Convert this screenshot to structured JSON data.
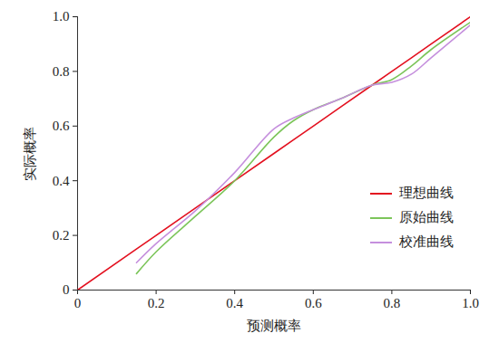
{
  "chart_data": {
    "type": "line",
    "x_label": "预测概率",
    "y_label": "实际概率",
    "x": [
      0,
      0.15,
      0.2,
      0.3,
      0.4,
      0.5,
      0.55,
      0.6,
      0.67,
      0.75,
      0.8,
      0.85,
      0.9,
      1.0
    ],
    "series": [
      {
        "name": "理想曲线",
        "color": "#e3101f",
        "values": [
          0,
          0.15,
          0.2,
          0.3,
          0.4,
          0.5,
          0.55,
          0.6,
          0.67,
          0.75,
          0.8,
          0.85,
          0.9,
          1.0
        ]
      },
      {
        "name": "原始曲线",
        "color": "#7cc55a",
        "values": [
          null,
          0.06,
          0.14,
          0.27,
          0.4,
          0.56,
          0.62,
          0.66,
          0.7,
          0.75,
          0.77,
          0.82,
          0.88,
          0.98
        ]
      },
      {
        "name": "校准曲线",
        "color": "#c58fdd",
        "values": [
          null,
          0.1,
          0.17,
          0.29,
          0.43,
          0.59,
          0.63,
          0.66,
          0.7,
          0.75,
          0.76,
          0.79,
          0.85,
          0.97
        ]
      }
    ],
    "xlim": [
      0,
      1
    ],
    "ylim": [
      0,
      1
    ],
    "xticks": [
      0,
      0.2,
      0.4,
      0.6,
      0.8,
      {
        "value": 1,
        "label": "1.0"
      }
    ],
    "yticks": [
      0,
      0.2,
      0.4,
      0.6,
      0.8,
      {
        "value": 1,
        "label": "1.0"
      }
    ],
    "grid": false,
    "legend": "lower right"
  }
}
